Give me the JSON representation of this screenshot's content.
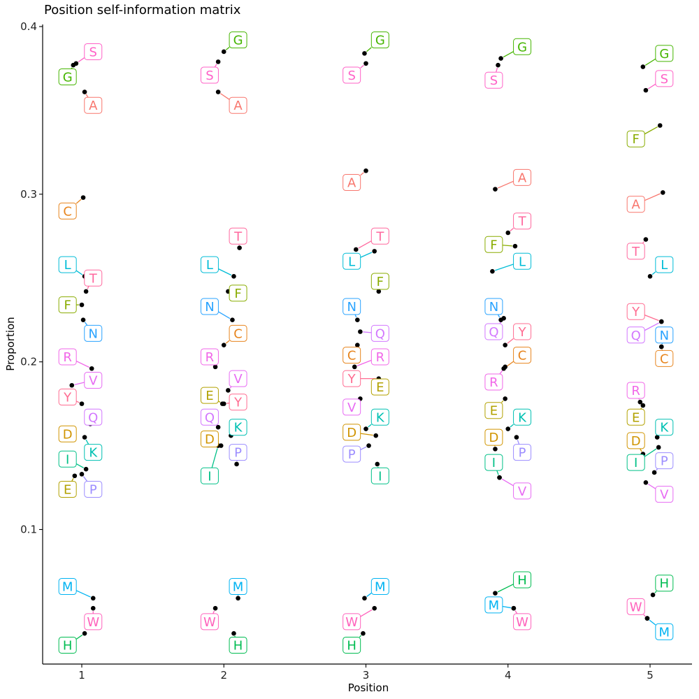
{
  "chart_data": {
    "type": "scatter",
    "title": "Position self-information matrix",
    "xlabel": "Position",
    "ylabel": "Proportion",
    "xticks": [
      "1",
      "2",
      "3",
      "4",
      "5"
    ],
    "yticks": [
      "0.1",
      "0.2",
      "0.3",
      "0.4"
    ],
    "xlim": [
      0.72,
      5.3
    ],
    "ylim": [
      0.02,
      0.4
    ],
    "grid": false,
    "legend": "none",
    "colors": {
      "A": "#F8766D",
      "C": "#E7851E",
      "D": "#D09400",
      "E": "#B2A100",
      "F": "#89AC00",
      "G": "#45B500",
      "H": "#00BC51",
      "I": "#00C087",
      "K": "#00C0B2",
      "L": "#00BCD6",
      "M": "#00B3F2",
      "N": "#29A3FF",
      "P": "#9C8DFF",
      "Q": "#D277FF",
      "R": "#F166E8",
      "S": "#FF61C7",
      "T": "#FF689E",
      "V": "#E76BF3",
      "W": "#FF62BC",
      "Y": "#FF6C91"
    },
    "series": [
      {
        "x": 1,
        "points": [
          {
            "aa": "S",
            "y": 0.378,
            "jitter": -0.04,
            "lx": 1.08,
            "ly": 0.385
          },
          {
            "aa": "G",
            "y": 0.377,
            "jitter": -0.06,
            "lx": 0.9,
            "ly": 0.37
          },
          {
            "aa": "A",
            "y": 0.361,
            "jitter": 0.02,
            "lx": 1.08,
            "ly": 0.353
          },
          {
            "aa": "C",
            "y": 0.298,
            "jitter": 0.01,
            "lx": 0.9,
            "ly": 0.29
          },
          {
            "aa": "L",
            "y": 0.251,
            "jitter": 0.02,
            "lx": 0.9,
            "ly": 0.258
          },
          {
            "aa": "T",
            "y": 0.242,
            "jitter": 0.03,
            "lx": 1.08,
            "ly": 0.25
          },
          {
            "aa": "F",
            "y": 0.234,
            "jitter": 0.0,
            "lx": 0.9,
            "ly": 0.234
          },
          {
            "aa": "N",
            "y": 0.225,
            "jitter": 0.01,
            "lx": 1.08,
            "ly": 0.217
          },
          {
            "aa": "R",
            "y": 0.196,
            "jitter": 0.07,
            "lx": 0.9,
            "ly": 0.203
          },
          {
            "aa": "V",
            "y": 0.186,
            "jitter": -0.07,
            "lx": 1.08,
            "ly": 0.189
          },
          {
            "aa": "Y",
            "y": 0.175,
            "jitter": 0.0,
            "lx": 0.9,
            "ly": 0.179
          },
          {
            "aa": "Q",
            "y": 0.163,
            "jitter": 0.06,
            "lx": 1.08,
            "ly": 0.167
          },
          {
            "aa": "D",
            "y": 0.154,
            "jitter": -0.06,
            "lx": 0.9,
            "ly": 0.157
          },
          {
            "aa": "K",
            "y": 0.155,
            "jitter": 0.02,
            "lx": 1.08,
            "ly": 0.146
          },
          {
            "aa": "I",
            "y": 0.136,
            "jitter": 0.03,
            "lx": 0.9,
            "ly": 0.142
          },
          {
            "aa": "E",
            "y": 0.132,
            "jitter": -0.05,
            "lx": 0.9,
            "ly": 0.124
          },
          {
            "aa": "P",
            "y": 0.133,
            "jitter": 0.0,
            "lx": 1.08,
            "ly": 0.124
          },
          {
            "aa": "M",
            "y": 0.059,
            "jitter": 0.08,
            "lx": 0.9,
            "ly": 0.066
          },
          {
            "aa": "W",
            "y": 0.053,
            "jitter": 0.08,
            "lx": 1.08,
            "ly": 0.045
          },
          {
            "aa": "H",
            "y": 0.038,
            "jitter": 0.02,
            "lx": 0.9,
            "ly": 0.031
          }
        ]
      },
      {
        "x": 2,
        "points": [
          {
            "aa": "G",
            "y": 0.385,
            "jitter": 0.0,
            "lx": 2.1,
            "ly": 0.392
          },
          {
            "aa": "S",
            "y": 0.379,
            "jitter": -0.04,
            "lx": 1.9,
            "ly": 0.371
          },
          {
            "aa": "A",
            "y": 0.361,
            "jitter": -0.04,
            "lx": 2.1,
            "ly": 0.353
          },
          {
            "aa": "T",
            "y": 0.268,
            "jitter": 0.11,
            "lx": 2.1,
            "ly": 0.275
          },
          {
            "aa": "L",
            "y": 0.251,
            "jitter": 0.07,
            "lx": 1.9,
            "ly": 0.258
          },
          {
            "aa": "F",
            "y": 0.242,
            "jitter": 0.03,
            "lx": 2.1,
            "ly": 0.241
          },
          {
            "aa": "N",
            "y": 0.225,
            "jitter": 0.06,
            "lx": 1.9,
            "ly": 0.233
          },
          {
            "aa": "C",
            "y": 0.21,
            "jitter": 0.0,
            "lx": 2.1,
            "ly": 0.217
          },
          {
            "aa": "R",
            "y": 0.197,
            "jitter": -0.06,
            "lx": 1.9,
            "ly": 0.203
          },
          {
            "aa": "V",
            "y": 0.183,
            "jitter": 0.03,
            "lx": 2.1,
            "ly": 0.19
          },
          {
            "aa": "E",
            "y": 0.175,
            "jitter": -0.01,
            "lx": 1.9,
            "ly": 0.18
          },
          {
            "aa": "Y",
            "y": 0.175,
            "jitter": 0.0,
            "lx": 2.1,
            "ly": 0.176
          },
          {
            "aa": "Q",
            "y": 0.161,
            "jitter": -0.04,
            "lx": 1.9,
            "ly": 0.167
          },
          {
            "aa": "K",
            "y": 0.156,
            "jitter": 0.05,
            "lx": 2.1,
            "ly": 0.161
          },
          {
            "aa": "D",
            "y": 0.15,
            "jitter": -0.02,
            "lx": 1.9,
            "ly": 0.154
          },
          {
            "aa": "P",
            "y": 0.139,
            "jitter": 0.09,
            "lx": 2.1,
            "ly": 0.146
          },
          {
            "aa": "I",
            "y": 0.15,
            "jitter": -0.04,
            "lx": 1.9,
            "ly": 0.132
          },
          {
            "aa": "M",
            "y": 0.059,
            "jitter": 0.1,
            "lx": 2.1,
            "ly": 0.066
          },
          {
            "aa": "W",
            "y": 0.053,
            "jitter": -0.06,
            "lx": 1.9,
            "ly": 0.045
          },
          {
            "aa": "H",
            "y": 0.038,
            "jitter": 0.07,
            "lx": 2.1,
            "ly": 0.031
          }
        ]
      },
      {
        "x": 3,
        "points": [
          {
            "aa": "G",
            "y": 0.384,
            "jitter": -0.01,
            "lx": 3.1,
            "ly": 0.392
          },
          {
            "aa": "S",
            "y": 0.378,
            "jitter": 0.0,
            "lx": 2.9,
            "ly": 0.371
          },
          {
            "aa": "A",
            "y": 0.314,
            "jitter": 0.0,
            "lx": 2.9,
            "ly": 0.307
          },
          {
            "aa": "T",
            "y": 0.267,
            "jitter": -0.07,
            "lx": 3.1,
            "ly": 0.275
          },
          {
            "aa": "L",
            "y": 0.266,
            "jitter": 0.06,
            "lx": 2.9,
            "ly": 0.26
          },
          {
            "aa": "F",
            "y": 0.242,
            "jitter": 0.09,
            "lx": 3.1,
            "ly": 0.248
          },
          {
            "aa": "N",
            "y": 0.225,
            "jitter": -0.06,
            "lx": 2.9,
            "ly": 0.233
          },
          {
            "aa": "Q",
            "y": 0.218,
            "jitter": -0.04,
            "lx": 3.1,
            "ly": 0.217
          },
          {
            "aa": "C",
            "y": 0.21,
            "jitter": -0.06,
            "lx": 2.9,
            "ly": 0.204
          },
          {
            "aa": "R",
            "y": 0.197,
            "jitter": -0.08,
            "lx": 3.1,
            "ly": 0.203
          },
          {
            "aa": "Y",
            "y": 0.19,
            "jitter": 0.09,
            "lx": 2.9,
            "ly": 0.19
          },
          {
            "aa": "E",
            "y": 0.183,
            "jitter": 0.07,
            "lx": 3.1,
            "ly": 0.185
          },
          {
            "aa": "V",
            "y": 0.178,
            "jitter": -0.04,
            "lx": 2.9,
            "ly": 0.173
          },
          {
            "aa": "K",
            "y": 0.16,
            "jitter": 0.0,
            "lx": 3.1,
            "ly": 0.167
          },
          {
            "aa": "D",
            "y": 0.156,
            "jitter": 0.07,
            "lx": 2.9,
            "ly": 0.158
          },
          {
            "aa": "P",
            "y": 0.15,
            "jitter": 0.02,
            "lx": 2.9,
            "ly": 0.145
          },
          {
            "aa": "I",
            "y": 0.139,
            "jitter": 0.08,
            "lx": 3.1,
            "ly": 0.132
          },
          {
            "aa": "M",
            "y": 0.059,
            "jitter": -0.01,
            "lx": 3.1,
            "ly": 0.066
          },
          {
            "aa": "W",
            "y": 0.053,
            "jitter": 0.06,
            "lx": 2.9,
            "ly": 0.045
          },
          {
            "aa": "H",
            "y": 0.038,
            "jitter": -0.02,
            "lx": 2.9,
            "ly": 0.031
          }
        ]
      },
      {
        "x": 4,
        "points": [
          {
            "aa": "G",
            "y": 0.381,
            "jitter": -0.05,
            "lx": 4.1,
            "ly": 0.388
          },
          {
            "aa": "S",
            "y": 0.377,
            "jitter": -0.07,
            "lx": 3.9,
            "ly": 0.368
          },
          {
            "aa": "A",
            "y": 0.303,
            "jitter": -0.09,
            "lx": 4.1,
            "ly": 0.31
          },
          {
            "aa": "T",
            "y": 0.277,
            "jitter": 0.0,
            "lx": 4.1,
            "ly": 0.284
          },
          {
            "aa": "F",
            "y": 0.269,
            "jitter": 0.05,
            "lx": 3.9,
            "ly": 0.27
          },
          {
            "aa": "L",
            "y": 0.254,
            "jitter": -0.11,
            "lx": 4.1,
            "ly": 0.26
          },
          {
            "aa": "N",
            "y": 0.225,
            "jitter": -0.05,
            "lx": 3.9,
            "ly": 0.233
          },
          {
            "aa": "Q",
            "y": 0.226,
            "jitter": -0.03,
            "lx": 3.9,
            "ly": 0.218
          },
          {
            "aa": "Y",
            "y": 0.21,
            "jitter": -0.02,
            "lx": 4.1,
            "ly": 0.218
          },
          {
            "aa": "C",
            "y": 0.196,
            "jitter": -0.03,
            "lx": 4.1,
            "ly": 0.204
          },
          {
            "aa": "R",
            "y": 0.197,
            "jitter": -0.02,
            "lx": 3.9,
            "ly": 0.188
          },
          {
            "aa": "E",
            "y": 0.178,
            "jitter": -0.02,
            "lx": 3.9,
            "ly": 0.171
          },
          {
            "aa": "K",
            "y": 0.16,
            "jitter": 0.0,
            "lx": 4.1,
            "ly": 0.167
          },
          {
            "aa": "D",
            "y": 0.148,
            "jitter": -0.09,
            "lx": 3.9,
            "ly": 0.155
          },
          {
            "aa": "P",
            "y": 0.155,
            "jitter": 0.06,
            "lx": 4.1,
            "ly": 0.146
          },
          {
            "aa": "I",
            "y": 0.131,
            "jitter": -0.06,
            "lx": 3.9,
            "ly": 0.14
          },
          {
            "aa": "V",
            "y": 0.131,
            "jitter": -0.06,
            "lx": 4.1,
            "ly": 0.123
          },
          {
            "aa": "H",
            "y": 0.062,
            "jitter": -0.09,
            "lx": 4.1,
            "ly": 0.07
          },
          {
            "aa": "M",
            "y": 0.053,
            "jitter": 0.04,
            "lx": 3.9,
            "ly": 0.055
          },
          {
            "aa": "W",
            "y": 0.053,
            "jitter": 0.04,
            "lx": 4.1,
            "ly": 0.045
          }
        ]
      },
      {
        "x": 5,
        "points": [
          {
            "aa": "G",
            "y": 0.376,
            "jitter": -0.05,
            "lx": 5.1,
            "ly": 0.384
          },
          {
            "aa": "S",
            "y": 0.362,
            "jitter": -0.03,
            "lx": 5.1,
            "ly": 0.369
          },
          {
            "aa": "F",
            "y": 0.341,
            "jitter": 0.07,
            "lx": 4.9,
            "ly": 0.333
          },
          {
            "aa": "A",
            "y": 0.301,
            "jitter": 0.09,
            "lx": 4.9,
            "ly": 0.294
          },
          {
            "aa": "T",
            "y": 0.273,
            "jitter": -0.03,
            "lx": 4.9,
            "ly": 0.266
          },
          {
            "aa": "L",
            "y": 0.251,
            "jitter": 0.0,
            "lx": 5.1,
            "ly": 0.258
          },
          {
            "aa": "Y",
            "y": 0.224,
            "jitter": 0.08,
            "lx": 4.9,
            "ly": 0.23
          },
          {
            "aa": "Q",
            "y": 0.224,
            "jitter": 0.08,
            "lx": 4.9,
            "ly": 0.216
          },
          {
            "aa": "N",
            "y": 0.209,
            "jitter": 0.08,
            "lx": 5.1,
            "ly": 0.216
          },
          {
            "aa": "C",
            "y": 0.209,
            "jitter": 0.08,
            "lx": 5.1,
            "ly": 0.202
          },
          {
            "aa": "R",
            "y": 0.176,
            "jitter": -0.07,
            "lx": 4.9,
            "ly": 0.183
          },
          {
            "aa": "E",
            "y": 0.174,
            "jitter": -0.05,
            "lx": 4.9,
            "ly": 0.167
          },
          {
            "aa": "K",
            "y": 0.155,
            "jitter": 0.05,
            "lx": 5.1,
            "ly": 0.161
          },
          {
            "aa": "D",
            "y": 0.145,
            "jitter": -0.05,
            "lx": 4.9,
            "ly": 0.153
          },
          {
            "aa": "I",
            "y": 0.149,
            "jitter": 0.06,
            "lx": 4.9,
            "ly": 0.14
          },
          {
            "aa": "P",
            "y": 0.134,
            "jitter": 0.03,
            "lx": 5.1,
            "ly": 0.141
          },
          {
            "aa": "V",
            "y": 0.128,
            "jitter": -0.03,
            "lx": 5.1,
            "ly": 0.121
          },
          {
            "aa": "H",
            "y": 0.061,
            "jitter": 0.02,
            "lx": 5.1,
            "ly": 0.068
          },
          {
            "aa": "W",
            "y": 0.047,
            "jitter": -0.02,
            "lx": 4.9,
            "ly": 0.054
          },
          {
            "aa": "M",
            "y": 0.047,
            "jitter": -0.02,
            "lx": 5.1,
            "ly": 0.039
          }
        ]
      }
    ]
  }
}
